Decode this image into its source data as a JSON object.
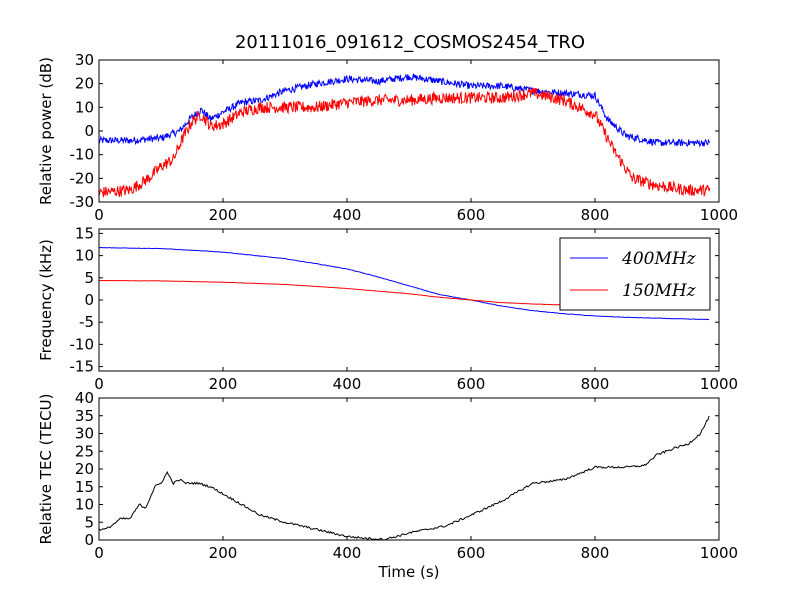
{
  "title": "20111016_091612_COSMOS2454_TRO",
  "chart_data": [
    {
      "type": "line",
      "ylabel": "Relative power (dB)",
      "xlabel": "",
      "xlim": [
        0,
        1000
      ],
      "ylim": [
        -30,
        30
      ],
      "xticks": [
        0,
        200,
        400,
        600,
        800,
        1000
      ],
      "yticks": [
        -30,
        -20,
        -10,
        0,
        10,
        20,
        30
      ],
      "legend": null,
      "series": [
        {
          "color": "#0000ff",
          "noise": 1.5,
          "x": [
            0,
            50,
            100,
            130,
            150,
            165,
            180,
            200,
            230,
            260,
            300,
            350,
            400,
            450,
            500,
            550,
            600,
            650,
            700,
            750,
            800,
            820,
            850,
            900,
            950,
            985
          ],
          "y": [
            -4,
            -4,
            -3,
            0,
            6,
            9,
            5,
            8,
            12,
            13,
            17,
            20,
            22,
            21,
            23,
            21,
            19,
            19,
            17,
            16,
            15,
            5,
            -2,
            -5,
            -5,
            -5
          ]
        },
        {
          "color": "#ff0000",
          "noise": 2.5,
          "x": [
            0,
            50,
            80,
            100,
            120,
            135,
            150,
            165,
            180,
            200,
            230,
            260,
            300,
            350,
            400,
            450,
            500,
            550,
            600,
            650,
            700,
            750,
            800,
            830,
            860,
            900,
            950,
            985
          ],
          "y": [
            -26,
            -25,
            -20,
            -15,
            -12,
            -3,
            4,
            7,
            2,
            3,
            8,
            10,
            10,
            10,
            12,
            13,
            13,
            14,
            14,
            14,
            16,
            13,
            7,
            -8,
            -20,
            -23,
            -25,
            -25
          ]
        }
      ]
    },
    {
      "type": "line",
      "ylabel": "Frequency (kHz)",
      "xlabel": "",
      "xlim": [
        0,
        1000
      ],
      "ylim": [
        -16,
        16
      ],
      "xticks": [
        0,
        200,
        400,
        600,
        800,
        1000
      ],
      "yticks": [
        -15,
        -10,
        -5,
        0,
        5,
        10,
        15
      ],
      "legend": "top-right",
      "series": [
        {
          "name": "400MHz",
          "color": "#0000ff",
          "noise": 0.05,
          "x": [
            0,
            100,
            200,
            300,
            350,
            400,
            450,
            500,
            550,
            600,
            650,
            700,
            750,
            800,
            850,
            900,
            950,
            985
          ],
          "y": [
            11.8,
            11.6,
            10.8,
            9.3,
            8.2,
            7.0,
            5.2,
            3.2,
            1.2,
            0,
            -1.4,
            -2.4,
            -3.1,
            -3.6,
            -3.9,
            -4.1,
            -4.3,
            -4.4
          ]
        },
        {
          "name": "150MHz",
          "color": "#ff0000",
          "noise": 0.03,
          "x": [
            0,
            100,
            200,
            300,
            400,
            500,
            550,
            600,
            650,
            700,
            800,
            900,
            985
          ],
          "y": [
            4.4,
            4.3,
            4.0,
            3.5,
            2.6,
            1.4,
            0.6,
            0,
            -0.6,
            -0.9,
            -1.3,
            -1.5,
            -1.6
          ]
        }
      ]
    },
    {
      "type": "line",
      "ylabel": "Relative TEC (TECU)",
      "xlabel": "Time (s)",
      "xlim": [
        0,
        1000
      ],
      "ylim": [
        0,
        40
      ],
      "xticks": [
        0,
        200,
        400,
        600,
        800,
        1000
      ],
      "yticks": [
        0,
        5,
        10,
        15,
        20,
        25,
        30,
        35,
        40
      ],
      "legend": null,
      "series": [
        {
          "color": "#000000",
          "noise": 0.3,
          "x": [
            0,
            10,
            20,
            35,
            50,
            65,
            75,
            90,
            100,
            110,
            120,
            130,
            140,
            150,
            160,
            180,
            200,
            230,
            260,
            300,
            350,
            400,
            430,
            460,
            480,
            500,
            530,
            560,
            600,
            650,
            700,
            750,
            800,
            850,
            880,
            900,
            930,
            950,
            970,
            985
          ],
          "y": [
            3,
            3,
            4,
            6,
            6,
            10,
            9,
            15,
            16,
            19,
            16,
            17,
            16,
            16,
            16,
            15,
            13,
            10,
            7,
            5,
            3,
            1,
            0.5,
            0.2,
            1,
            2,
            3,
            4,
            7,
            11,
            16,
            17,
            20.5,
            20.5,
            21,
            24,
            26,
            27,
            30,
            35
          ]
        }
      ]
    }
  ]
}
